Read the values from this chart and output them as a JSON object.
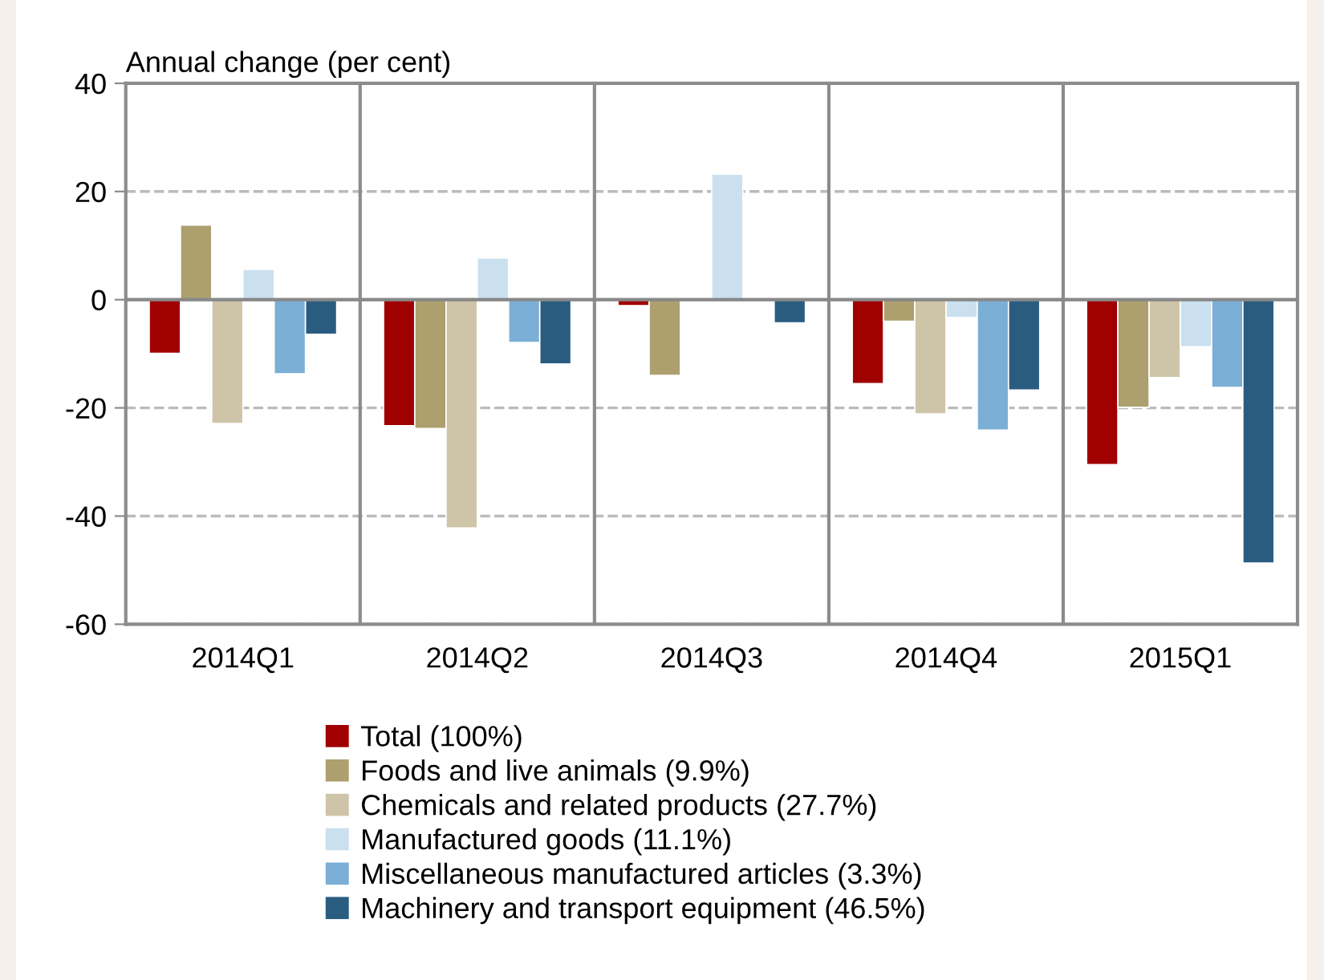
{
  "chart_data": {
    "type": "bar",
    "ylabel": "Annual change (per cent)",
    "categories": [
      "2014Q1",
      "2014Q2",
      "2014Q3",
      "2014Q4",
      "2015Q1"
    ],
    "series": [
      {
        "name": "Total (100%)",
        "color": "#a00000",
        "values": [
          -9.9,
          -23.3,
          -1.1,
          -15.5,
          -30.5
        ]
      },
      {
        "name": "Foods and live animals (9.9%)",
        "color": "#ada06e",
        "values": [
          13.8,
          -23.8,
          -14.0,
          -4.0,
          -19.9
        ]
      },
      {
        "name": "Chemicals and related products (27.7%)",
        "color": "#cec5a8",
        "values": [
          -22.9,
          -42.2,
          null,
          -21.1,
          -14.4
        ]
      },
      {
        "name": "Manufactured goods (11.1%)",
        "color": "#cae0ef",
        "values": [
          5.6,
          7.7,
          23.2,
          -3.3,
          -8.7
        ]
      },
      {
        "name": "Miscellaneous manufactured articles (3.3%)",
        "color": "#7bafd5",
        "values": [
          -13.7,
          -7.9,
          null,
          -24.1,
          -16.2
        ]
      },
      {
        "name": "Machinery and transport equipment (46.5%)",
        "color": "#2a5c80",
        "values": [
          -6.4,
          -11.9,
          -4.3,
          -16.7,
          -48.7
        ]
      }
    ],
    "ylim": [
      -60,
      40
    ],
    "yticks": [
      -60,
      -40,
      -20,
      0,
      20,
      40
    ],
    "grid": "y",
    "legend": "bottom"
  }
}
